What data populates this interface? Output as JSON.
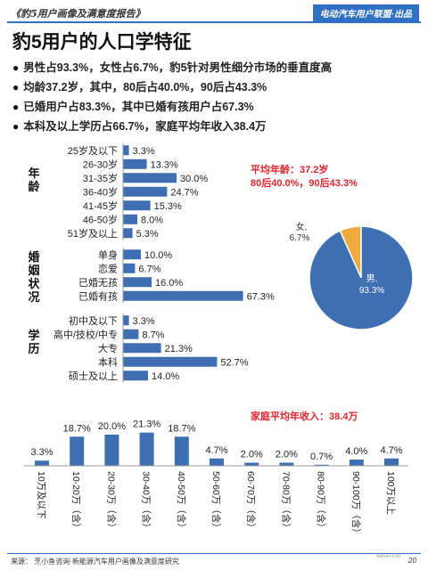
{
  "header": {
    "report_title": "《豹5用户画像及满意度报告》",
    "publisher": "电动汽车用户联盟·出品"
  },
  "page": {
    "title": "豹5用户的人口学特征",
    "bullets": [
      "男性占93.3%，女性占6.7%，豹5针对男性细分市场的垂直度高",
      "均龄37.2岁，其中，80后占40.0%，90后占43.3%",
      "已婚用户占83.3%，其中已婚有孩用户占67.3%",
      "本科及以上学历占66.7%，家庭平均年收入38.4万"
    ],
    "avg_age_title": "平均年龄：37.2岁",
    "avg_age_detail": "80后40.0%，90后43.3%",
    "income_title": "家庭平均年收入：38.4万"
  },
  "footer": {
    "source": "来源：  烹小鱼咨询·新能源汽车用户画像及满意度研究",
    "base": "Base=150",
    "page_number": "20"
  },
  "colors": {
    "bar": "#3f6fb3",
    "accent": "#2f6fc4",
    "highlight": "#e0232e",
    "pie_male": "#3f6fb3",
    "pie_female": "#f0a93b"
  },
  "chart_data": [
    {
      "type": "bar",
      "orientation": "horizontal",
      "group_label": "年龄",
      "categories": [
        "25岁及以下",
        "26-30岁",
        "31-35岁",
        "36-40岁",
        "41-45岁",
        "46-50岁",
        "51岁及以上"
      ],
      "values": [
        3.3,
        13.3,
        30.0,
        24.7,
        15.3,
        8.0,
        5.3
      ],
      "labels": [
        "3.3%",
        "13.3%",
        "30.0%",
        "24.7%",
        "15.3%",
        "8.0%",
        "5.3%"
      ]
    },
    {
      "type": "bar",
      "orientation": "horizontal",
      "group_label": "婚姻状况",
      "categories": [
        "单身",
        "恋爱",
        "已婚无孩",
        "已婚有孩"
      ],
      "values": [
        10.0,
        6.7,
        16.0,
        67.3
      ],
      "labels": [
        "10.0%",
        "6.7%",
        "16.0%",
        "67.3%"
      ]
    },
    {
      "type": "bar",
      "orientation": "horizontal",
      "group_label": "学历",
      "categories": [
        "初中及以下",
        "高中/技校/中专",
        "大专",
        "本科",
        "硕士及以上"
      ],
      "values": [
        3.3,
        8.7,
        21.3,
        52.7,
        14.0
      ],
      "labels": [
        "3.3%",
        "8.7%",
        "21.3%",
        "52.7%",
        "14.0%"
      ]
    },
    {
      "type": "pie",
      "slices": [
        {
          "name": "男",
          "value": 93.3,
          "label": "93.3%"
        },
        {
          "name": "女",
          "value": 6.7,
          "label": "6.7%"
        }
      ]
    },
    {
      "type": "bar",
      "orientation": "vertical",
      "categories": [
        "10万及以下",
        "10-20万（含）",
        "20-30万（含）",
        "30-40万（含）",
        "40-50万（含）",
        "50-60万（含）",
        "60-70万（含）",
        "70-80万（含）",
        "80-90万（含）",
        "90-100万（含）",
        "100万以上"
      ],
      "values": [
        3.3,
        18.7,
        20.0,
        21.3,
        18.7,
        4.7,
        2.0,
        2.0,
        0.7,
        4.0,
        4.7
      ],
      "labels": [
        "3.3%",
        "18.7%",
        "20.0%",
        "21.3%",
        "18.7%",
        "4.7%",
        "2.0%",
        "2.0%",
        "0.7%",
        "4.0%",
        "4.7%"
      ]
    }
  ]
}
